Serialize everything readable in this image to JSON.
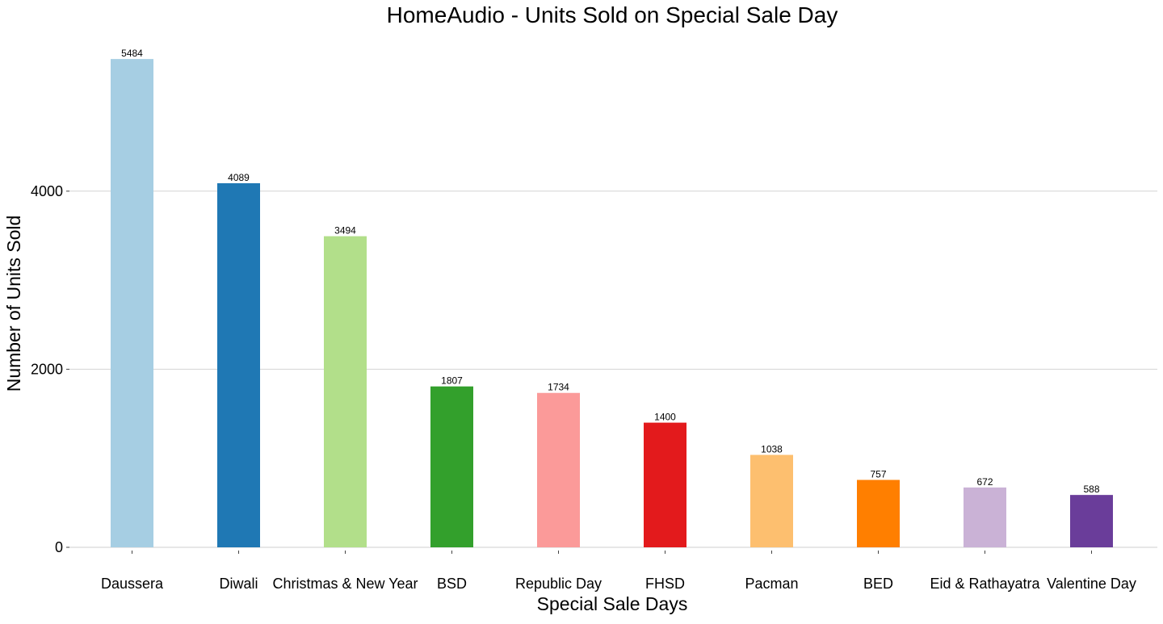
{
  "chart_data": {
    "type": "bar",
    "title": "HomeAudio - Units Sold on Special Sale Day",
    "xlabel": "Special Sale Days",
    "ylabel": "Number of Units Sold",
    "categories": [
      "Daussera",
      "Diwali",
      "Christmas & New Year",
      "BSD",
      "Republic Day",
      "FHSD",
      "Pacman",
      "BED",
      "Eid & Rathayatra",
      "Valentine Day"
    ],
    "values": [
      5484,
      4089,
      3494,
      1807,
      1734,
      1400,
      1038,
      757,
      672,
      588
    ],
    "colors": [
      "#a6cee3",
      "#1f78b4",
      "#b2df8a",
      "#33a02c",
      "#fb9a99",
      "#e31a1c",
      "#fdbf6f",
      "#ff7f00",
      "#cab2d6",
      "#6a3d9a"
    ],
    "yticks": [
      "0",
      "2000",
      "4000"
    ],
    "ylim": [
      0,
      5484
    ],
    "grid": true,
    "legend": "none"
  }
}
